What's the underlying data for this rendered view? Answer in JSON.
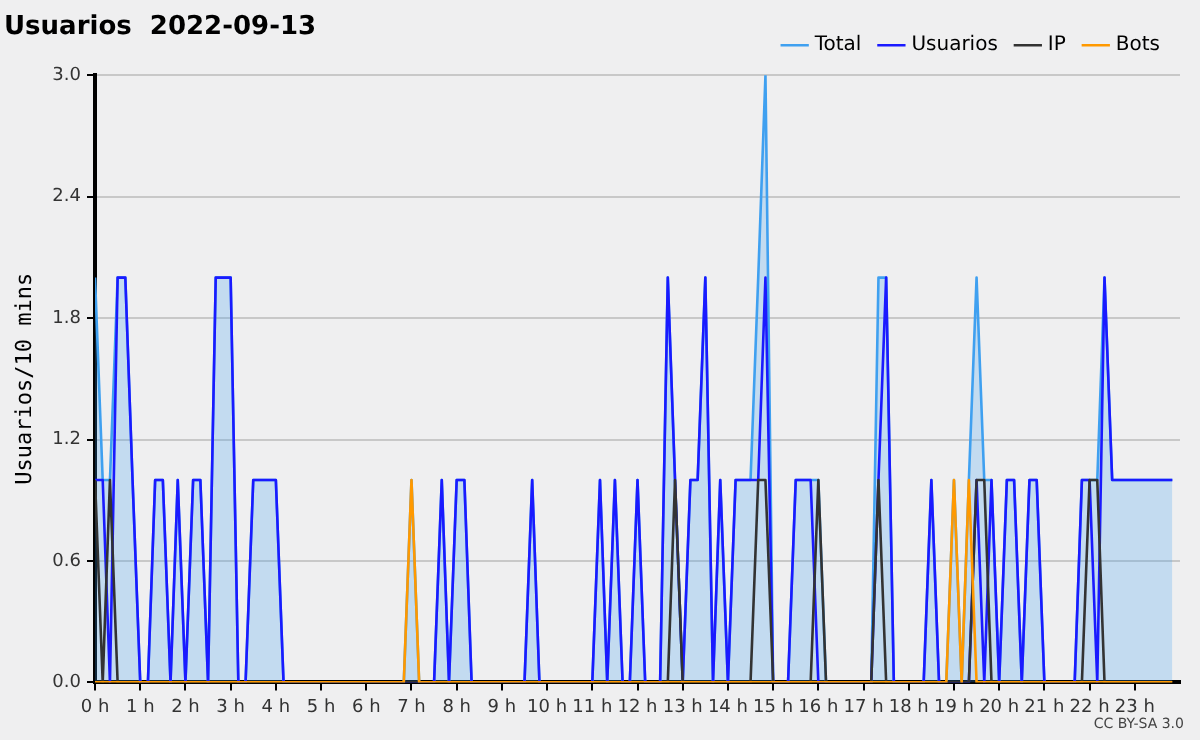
{
  "chart_data": {
    "type": "line",
    "title": "Usuarios  2022-09-13",
    "ylabel": "Usuarios/10 mins",
    "annotations": [
      "CC BY-SA 3.0"
    ],
    "x": [
      0,
      0.17,
      0.33,
      0.5,
      0.67,
      0.83,
      1,
      1.17,
      1.33,
      1.5,
      1.67,
      1.83,
      2,
      2.17,
      2.33,
      2.5,
      2.67,
      2.83,
      3,
      3.17,
      3.33,
      3.5,
      3.67,
      3.83,
      4,
      4.17,
      4.33,
      4.5,
      4.67,
      4.83,
      5,
      5.17,
      5.33,
      5.5,
      5.67,
      5.83,
      6,
      6.17,
      6.33,
      6.5,
      6.67,
      6.83,
      7,
      7.17,
      7.33,
      7.5,
      7.67,
      7.83,
      8,
      8.17,
      8.33,
      8.5,
      8.67,
      8.83,
      9,
      9.17,
      9.33,
      9.5,
      9.67,
      9.83,
      10,
      10.17,
      10.33,
      10.5,
      10.67,
      10.83,
      11,
      11.17,
      11.33,
      11.5,
      11.67,
      11.83,
      12,
      12.17,
      12.33,
      12.5,
      12.67,
      12.83,
      13,
      13.17,
      13.33,
      13.5,
      13.67,
      13.83,
      14,
      14.17,
      14.33,
      14.5,
      14.67,
      14.83,
      15,
      15.17,
      15.33,
      15.5,
      15.67,
      15.83,
      16,
      16.17,
      16.33,
      16.5,
      16.67,
      16.83,
      17,
      17.17,
      17.33,
      17.5,
      17.67,
      17.83,
      18,
      18.17,
      18.33,
      18.5,
      18.67,
      18.83,
      19,
      19.17,
      19.33,
      19.5,
      19.67,
      19.83,
      20,
      20.17,
      20.33,
      20.5,
      20.67,
      20.83,
      21,
      21.17,
      21.33,
      21.5,
      21.67,
      21.83,
      22,
      22.17,
      22.33,
      22.5,
      22.67,
      22.83,
      23,
      23.17,
      23.33,
      23.5,
      23.67,
      23.83
    ],
    "series": [
      {
        "name": "Total",
        "type": "area",
        "color": "#3fa0f0",
        "values": [
          2,
          1,
          1,
          2,
          2,
          1,
          0,
          0,
          1,
          1,
          0,
          1,
          0,
          1,
          1,
          0,
          2,
          2,
          2,
          0,
          0,
          1,
          1,
          1,
          1,
          0,
          0,
          0,
          0,
          0,
          0,
          0,
          0,
          0,
          0,
          0,
          0,
          0,
          0,
          0,
          0,
          0,
          1,
          0,
          0,
          0,
          1,
          0,
          1,
          1,
          0,
          0,
          0,
          0,
          0,
          0,
          0,
          0,
          1,
          0,
          0,
          0,
          0,
          0,
          0,
          0,
          0,
          1,
          0,
          1,
          0,
          0,
          1,
          0,
          0,
          0,
          2,
          1,
          0,
          1,
          1,
          2,
          0,
          1,
          0,
          1,
          1,
          1,
          2,
          3,
          0,
          0,
          0,
          1,
          1,
          1,
          1,
          0,
          0,
          0,
          0,
          0,
          0,
          0,
          2,
          2,
          0,
          0,
          0,
          0,
          0,
          1,
          0,
          0,
          1,
          0,
          1,
          2,
          1,
          1,
          0,
          1,
          1,
          0,
          1,
          1,
          0,
          0,
          0,
          0,
          0,
          1,
          1,
          1,
          2,
          1,
          1,
          1,
          1,
          1,
          1,
          1,
          1,
          1
        ]
      },
      {
        "name": "Usuarios",
        "type": "line",
        "color": "#1a1aff",
        "values": [
          1,
          1,
          0,
          2,
          2,
          1,
          0,
          0,
          1,
          1,
          0,
          1,
          0,
          1,
          1,
          0,
          2,
          2,
          2,
          0,
          0,
          1,
          1,
          1,
          1,
          0,
          0,
          0,
          0,
          0,
          0,
          0,
          0,
          0,
          0,
          0,
          0,
          0,
          0,
          0,
          0,
          0,
          0,
          0,
          0,
          0,
          1,
          0,
          1,
          1,
          0,
          0,
          0,
          0,
          0,
          0,
          0,
          0,
          1,
          0,
          0,
          0,
          0,
          0,
          0,
          0,
          0,
          1,
          0,
          1,
          0,
          0,
          1,
          0,
          0,
          0,
          2,
          1,
          0,
          1,
          1,
          2,
          0,
          1,
          0,
          1,
          1,
          1,
          1,
          2,
          0,
          0,
          0,
          1,
          1,
          1,
          0,
          0,
          0,
          0,
          0,
          0,
          0,
          0,
          1,
          2,
          0,
          0,
          0,
          0,
          0,
          1,
          0,
          0,
          0,
          0,
          0,
          1,
          0,
          1,
          0,
          1,
          1,
          0,
          1,
          1,
          0,
          0,
          0,
          0,
          0,
          1,
          1,
          0,
          2,
          1,
          1,
          1,
          1,
          1,
          1,
          1,
          1,
          1
        ]
      },
      {
        "name": "IP",
        "type": "line",
        "color": "#333333",
        "values": [
          1,
          0,
          1,
          0,
          0,
          0,
          0,
          0,
          0,
          0,
          0,
          0,
          0,
          0,
          0,
          0,
          0,
          0,
          0,
          0,
          0,
          0,
          0,
          0,
          0,
          0,
          0,
          0,
          0,
          0,
          0,
          0,
          0,
          0,
          0,
          0,
          0,
          0,
          0,
          0,
          0,
          0,
          0,
          0,
          0,
          0,
          0,
          0,
          0,
          0,
          0,
          0,
          0,
          0,
          0,
          0,
          0,
          0,
          0,
          0,
          0,
          0,
          0,
          0,
          0,
          0,
          0,
          0,
          0,
          0,
          0,
          0,
          0,
          0,
          0,
          0,
          0,
          1,
          0,
          0,
          0,
          0,
          0,
          0,
          0,
          0,
          0,
          0,
          1,
          1,
          0,
          0,
          0,
          0,
          0,
          0,
          1,
          0,
          0,
          0,
          0,
          0,
          0,
          0,
          1,
          0,
          0,
          0,
          0,
          0,
          0,
          0,
          0,
          0,
          0,
          0,
          0,
          1,
          1,
          0,
          0,
          0,
          0,
          0,
          0,
          0,
          0,
          0,
          0,
          0,
          0,
          0,
          1,
          1,
          0,
          0,
          0,
          0,
          0,
          0,
          0,
          0,
          0,
          0
        ]
      },
      {
        "name": "Bots",
        "type": "line",
        "color": "#ff9900",
        "values": [
          0,
          0,
          0,
          0,
          0,
          0,
          0,
          0,
          0,
          0,
          0,
          0,
          0,
          0,
          0,
          0,
          0,
          0,
          0,
          0,
          0,
          0,
          0,
          0,
          0,
          0,
          0,
          0,
          0,
          0,
          0,
          0,
          0,
          0,
          0,
          0,
          0,
          0,
          0,
          0,
          0,
          0,
          1,
          0,
          0,
          0,
          0,
          0,
          0,
          0,
          0,
          0,
          0,
          0,
          0,
          0,
          0,
          0,
          0,
          0,
          0,
          0,
          0,
          0,
          0,
          0,
          0,
          0,
          0,
          0,
          0,
          0,
          0,
          0,
          0,
          0,
          0,
          0,
          0,
          0,
          0,
          0,
          0,
          0,
          0,
          0,
          0,
          0,
          0,
          0,
          0,
          0,
          0,
          0,
          0,
          0,
          0,
          0,
          0,
          0,
          0,
          0,
          0,
          0,
          0,
          0,
          0,
          0,
          0,
          0,
          0,
          0,
          0,
          0,
          1,
          0,
          1,
          0,
          0,
          0,
          0,
          0,
          0,
          0,
          0,
          0,
          0,
          0,
          0,
          0,
          0,
          0,
          0,
          0,
          0,
          0,
          0,
          0,
          0,
          0,
          0,
          0,
          0,
          0
        ]
      }
    ],
    "xlim": [
      0,
      24
    ],
    "xticks": [
      {
        "value": 0,
        "label": "0 h"
      },
      {
        "value": 1,
        "label": "1 h"
      },
      {
        "value": 2,
        "label": "2 h"
      },
      {
        "value": 3,
        "label": "3 h"
      },
      {
        "value": 4,
        "label": "4 h"
      },
      {
        "value": 5,
        "label": "5 h"
      },
      {
        "value": 6,
        "label": "6 h"
      },
      {
        "value": 7,
        "label": "7 h"
      },
      {
        "value": 8,
        "label": "8 h"
      },
      {
        "value": 9,
        "label": "9 h"
      },
      {
        "value": 10,
        "label": "10 h"
      },
      {
        "value": 11,
        "label": "11 h"
      },
      {
        "value": 12,
        "label": "12 h"
      },
      {
        "value": 13,
        "label": "13 h"
      },
      {
        "value": 14,
        "label": "14 h"
      },
      {
        "value": 15,
        "label": "15 h"
      },
      {
        "value": 16,
        "label": "16 h"
      },
      {
        "value": 17,
        "label": "17 h"
      },
      {
        "value": 18,
        "label": "18 h"
      },
      {
        "value": 19,
        "label": "19 h"
      },
      {
        "value": 20,
        "label": "20 h"
      },
      {
        "value": 21,
        "label": "21 h"
      },
      {
        "value": 22,
        "label": "22 h"
      },
      {
        "value": 23,
        "label": "23 h"
      }
    ],
    "ylim": [
      0,
      3
    ],
    "yticks": [
      {
        "value": 0,
        "label": "0.0"
      },
      {
        "value": 0.6,
        "label": "0.6"
      },
      {
        "value": 1.2,
        "label": "1.2"
      },
      {
        "value": 1.8,
        "label": "1.8"
      },
      {
        "value": 2.4,
        "label": "2.4"
      },
      {
        "value": 3,
        "label": "3.0"
      }
    ],
    "grid": "y",
    "legend": "top right",
    "marker": "none",
    "line_style": "solid"
  }
}
